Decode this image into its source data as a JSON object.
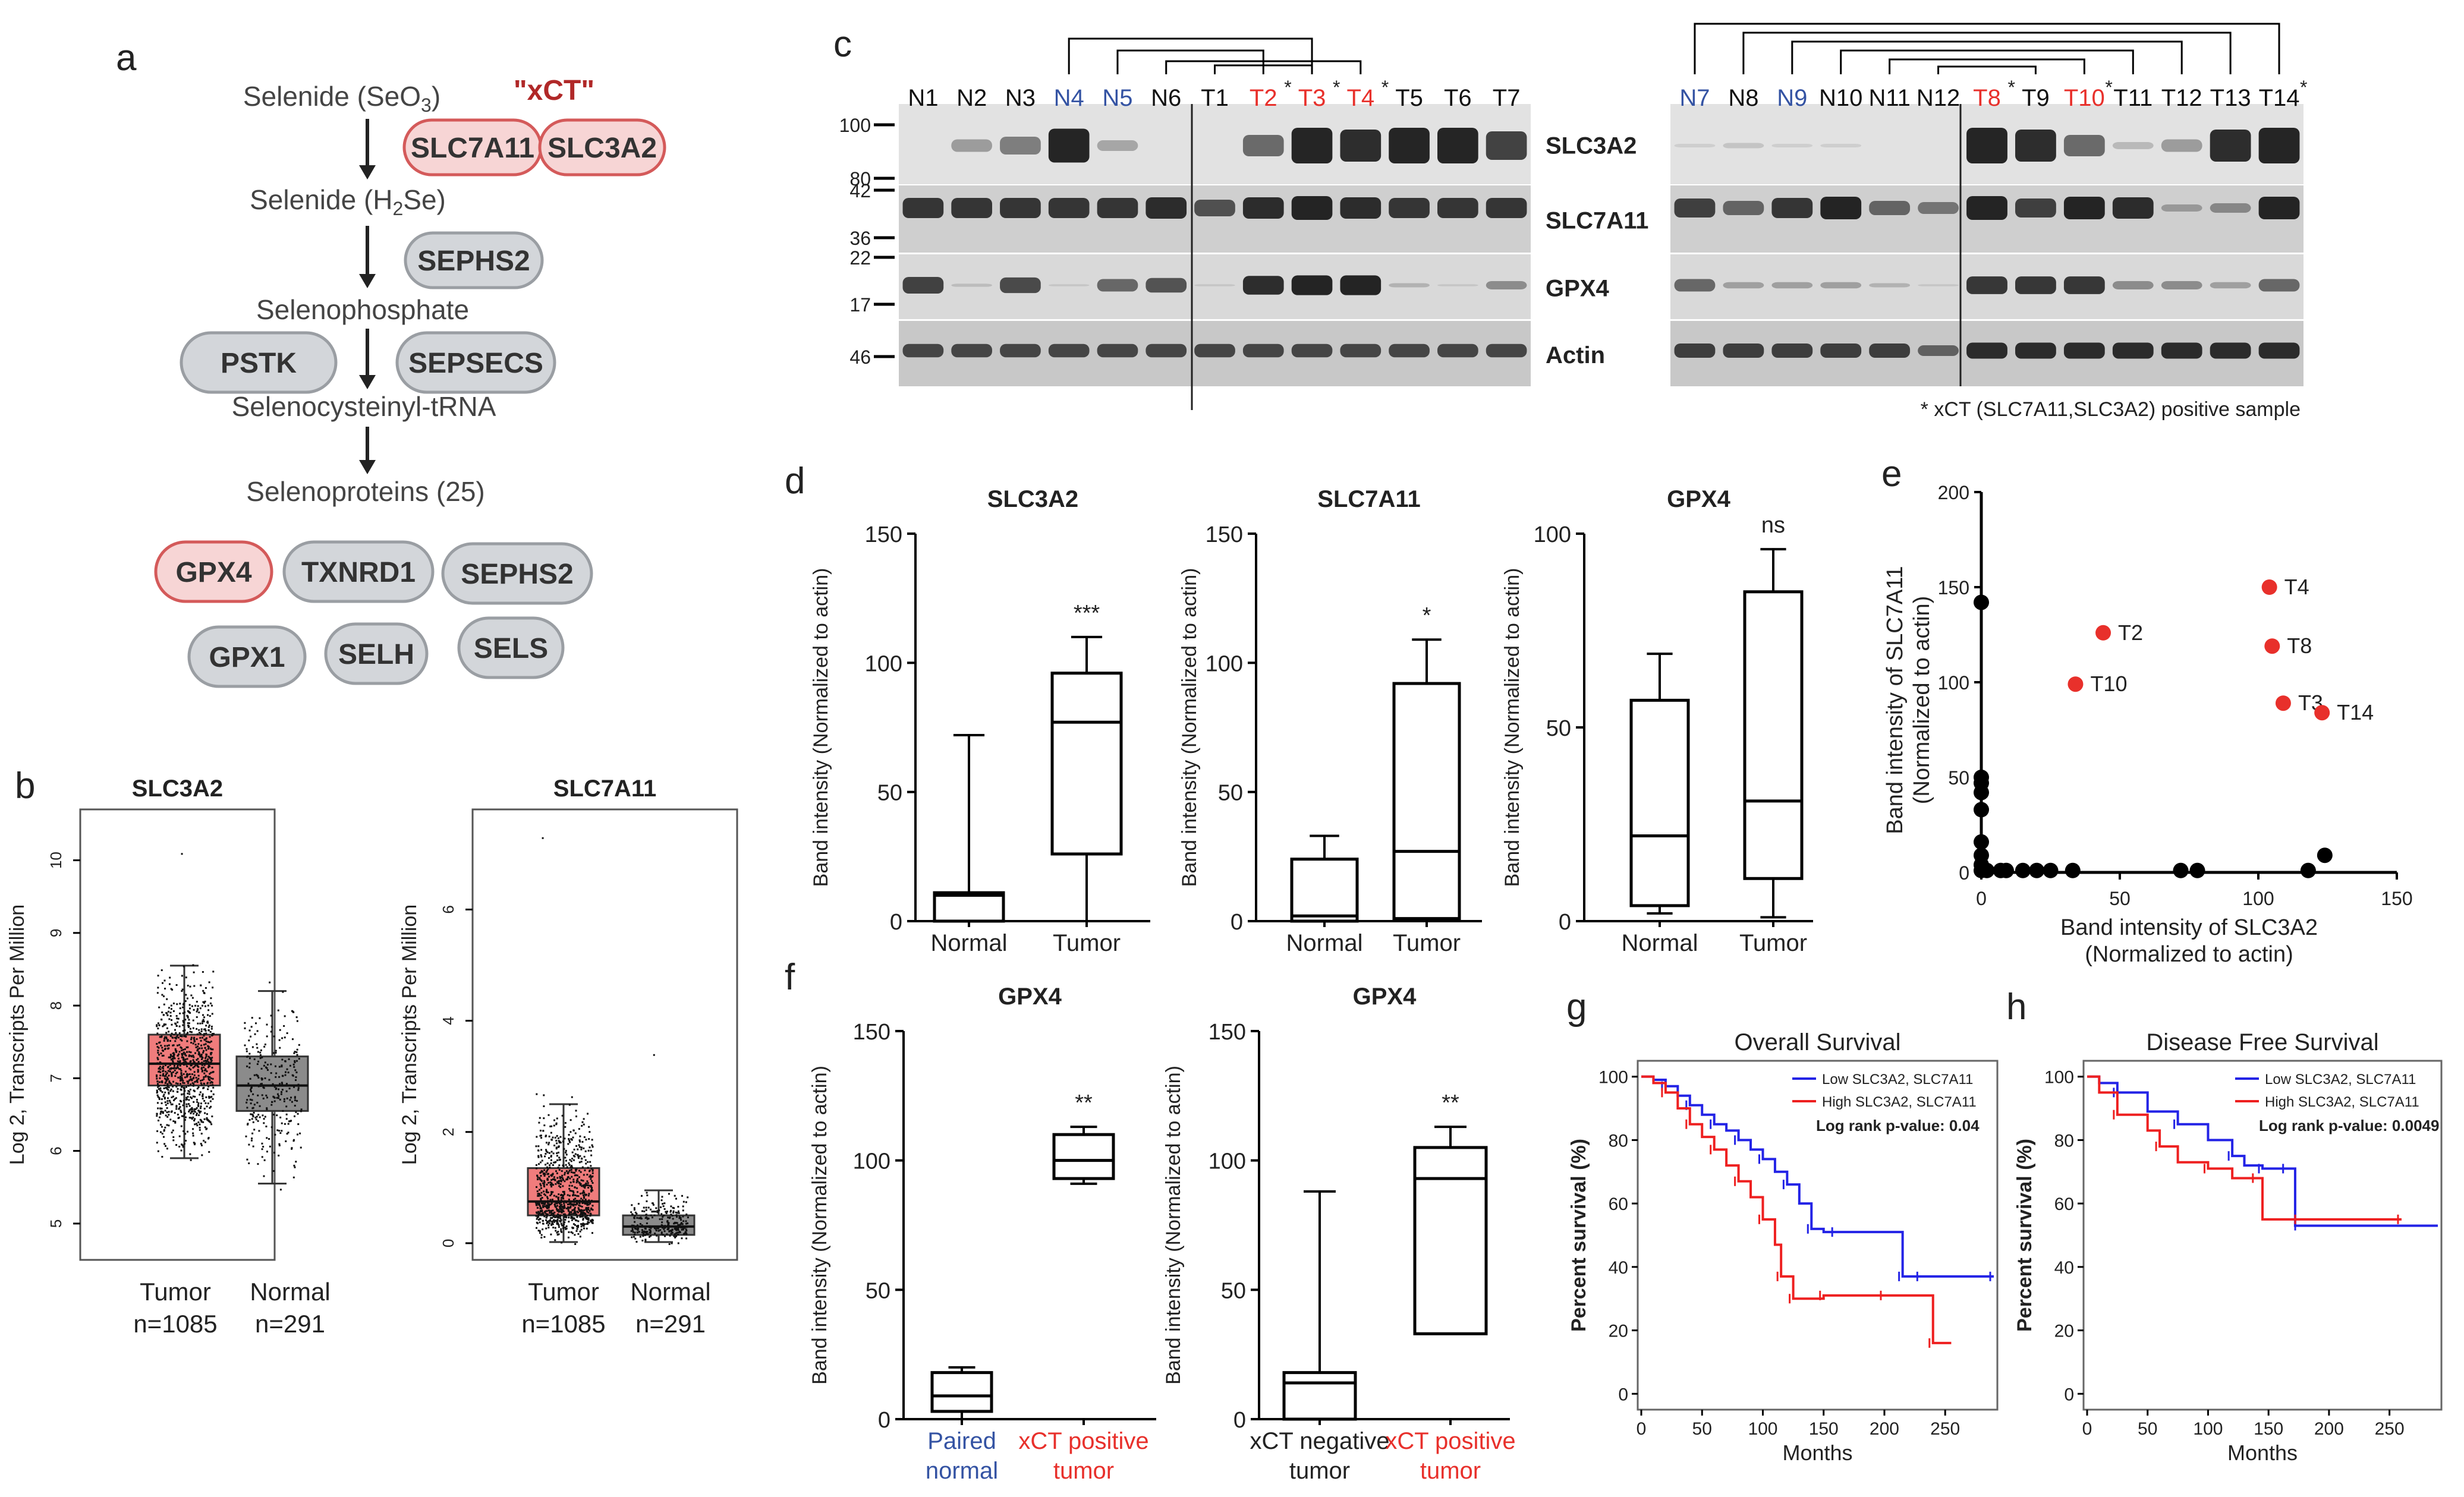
{
  "panel_labels": {
    "a": "a",
    "b": "b",
    "c": "c",
    "d": "d",
    "e": "e",
    "f": "f",
    "g": "g",
    "h": "h"
  },
  "colors": {
    "red": "#e8302b",
    "blue": "#3453a3",
    "pill_grey": "#d3d6da",
    "pill_red": "#f7d5d5",
    "tumor_box": "#f07c7c",
    "normal_box": "#8b8b8b",
    "km_blue": "#2323e6",
    "km_red": "#ee2020"
  },
  "pathway": {
    "steps": [
      {
        "pre": "Selenide (SeO",
        "sub": "3",
        "post": ")"
      },
      {
        "pre": "Selenide (H",
        "sub": "2",
        "post": "Se)"
      },
      {
        "pre": "Selenophosphate",
        "sub": "",
        "post": ""
      },
      {
        "pre": "Selenocysteinyl-tRNA",
        "sub": "",
        "post": ""
      },
      {
        "pre": "Selenoproteins (25)",
        "sub": "",
        "post": ""
      }
    ],
    "xct_label": "\"xCT\"",
    "enzymes": [
      "SLC7A11",
      "SLC3A2",
      "SEPHS2",
      "PSTK",
      "SEPSECS"
    ],
    "selenoproteins": [
      "GPX4",
      "TXNRD1",
      "SEPHS2",
      "GPX1",
      "SELH",
      "SELS"
    ]
  },
  "chart_data": [
    {
      "panel": "b-left",
      "type": "box",
      "title": "SLC3A2",
      "ylabel": "Log 2, Transcripts Per Million",
      "ylim": [
        4.5,
        10.7
      ],
      "yticks": [
        5,
        6,
        7,
        8,
        9,
        10
      ],
      "groups": [
        {
          "name": "Tumor",
          "n": "n=1085",
          "q1": 6.9,
          "median": 7.2,
          "q3": 7.6,
          "whisker_low": 5.9,
          "whisker_high": 8.55,
          "max": 10.1,
          "min": 5.5
        },
        {
          "name": "Normal",
          "n": "n=291",
          "q1": 6.55,
          "median": 6.9,
          "q3": 7.3,
          "whisker_low": 5.55,
          "whisker_high": 8.2,
          "max": 8.2,
          "min": 4.6
        }
      ]
    },
    {
      "panel": "b-right",
      "type": "box",
      "title": "SLC7A11",
      "ylabel": "Log 2, Transcripts Per Million",
      "ylim": [
        -0.3,
        7.8
      ],
      "yticks": [
        0,
        2,
        4,
        6
      ],
      "groups": [
        {
          "name": "Tumor",
          "n": "n=1085",
          "q1": 0.5,
          "median": 0.75,
          "q3": 1.35,
          "whisker_low": 0.02,
          "whisker_high": 2.5,
          "max": 7.3,
          "min": 0
        },
        {
          "name": "Normal",
          "n": "n=291",
          "q1": 0.15,
          "median": 0.3,
          "q3": 0.5,
          "whisker_low": 0.02,
          "whisker_high": 0.95,
          "max": 3.4,
          "min": 0
        }
      ]
    },
    {
      "panel": "d1",
      "type": "box",
      "title": "SLC3A2",
      "ylabel": "Band intensity (Normalized to actin)",
      "ylim": [
        0,
        150
      ],
      "yticks": [
        0,
        50,
        100,
        150
      ],
      "significance": "***",
      "groups": [
        {
          "name": "Normal",
          "min": 0,
          "q1": 0,
          "median": 10,
          "q3": 11,
          "max": 72
        },
        {
          "name": "Tumor",
          "min": 0,
          "q1": 26,
          "median": 77,
          "q3": 96,
          "max": 110
        }
      ]
    },
    {
      "panel": "d2",
      "type": "box",
      "title": "SLC7A11",
      "ylabel": "Band intensity (Normalized to actin)",
      "ylim": [
        0,
        150
      ],
      "yticks": [
        0,
        50,
        100,
        150
      ],
      "significance": "*",
      "groups": [
        {
          "name": "Normal",
          "min": 0,
          "q1": 0,
          "median": 2,
          "q3": 24,
          "max": 33
        },
        {
          "name": "Tumor",
          "min": 0,
          "q1": 1,
          "median": 27,
          "q3": 92,
          "max": 109
        }
      ]
    },
    {
      "panel": "d3",
      "type": "box",
      "title": "GPX4",
      "ylabel": "Band intensity (Normalized to actin)",
      "ylim": [
        0,
        100
      ],
      "yticks": [
        0,
        50,
        100
      ],
      "significance": "ns",
      "groups": [
        {
          "name": "Normal",
          "min": 2,
          "q1": 4,
          "median": 22,
          "q3": 57,
          "max": 69
        },
        {
          "name": "Tumor",
          "min": 1,
          "q1": 11,
          "median": 31,
          "q3": 85,
          "max": 96
        }
      ]
    },
    {
      "panel": "e",
      "type": "scatter",
      "xlabel": "Band intensity of SLC3A2",
      "xlabel2": "(Normalized to actin)",
      "ylabel": "Band intensity of SLC7A11",
      "ylabel2": "(Normalized to actin)",
      "xlim": [
        0,
        150
      ],
      "ylim": [
        0,
        200
      ],
      "xticks": [
        0,
        50,
        100,
        150
      ],
      "yticks": [
        0,
        50,
        100,
        150,
        200
      ],
      "points_black": [
        [
          0,
          142
        ],
        [
          0,
          50
        ],
        [
          0,
          47
        ],
        [
          0,
          42
        ],
        [
          0,
          33
        ],
        [
          0,
          16
        ],
        [
          0,
          9
        ],
        [
          0,
          4
        ],
        [
          0,
          1
        ],
        [
          2,
          1
        ],
        [
          7,
          1
        ],
        [
          9,
          1
        ],
        [
          15,
          1
        ],
        [
          20,
          1
        ],
        [
          25,
          1
        ],
        [
          33,
          1
        ],
        [
          72,
          1
        ],
        [
          78,
          1
        ],
        [
          118,
          1
        ],
        [
          124,
          9
        ]
      ],
      "points_red": [
        {
          "label": "T2",
          "x": 44,
          "y": 126
        },
        {
          "label": "T10",
          "x": 34,
          "y": 99
        },
        {
          "label": "T4",
          "x": 104,
          "y": 150
        },
        {
          "label": "T8",
          "x": 105,
          "y": 119
        },
        {
          "label": "T3",
          "x": 109,
          "y": 89
        },
        {
          "label": "T14",
          "x": 123,
          "y": 84
        }
      ]
    },
    {
      "panel": "f1",
      "type": "box",
      "title": "GPX4",
      "ylabel": "Band intensity (Normalized to actin)",
      "ylim": [
        0,
        150
      ],
      "yticks": [
        0,
        50,
        100,
        150
      ],
      "significance": "**",
      "groups": [
        {
          "name": "Paired normal",
          "line1": "Paired",
          "line2": "normal",
          "min": 0,
          "q1": 3,
          "median": 9,
          "q3": 18,
          "max": 20
        },
        {
          "name": "xCT positive tumor",
          "line1": "xCT positive",
          "line2": "tumor",
          "min": 91,
          "q1": 93,
          "median": 100,
          "q3": 110,
          "max": 113
        }
      ]
    },
    {
      "panel": "f2",
      "type": "box",
      "title": "GPX4",
      "ylabel": "Band intensity (Normalized to actin)",
      "ylim": [
        0,
        150
      ],
      "yticks": [
        0,
        50,
        100,
        150
      ],
      "significance": "**",
      "groups": [
        {
          "name": "xCT negative tumor",
          "line1": "xCT negative",
          "line2": "tumor",
          "min": 0,
          "q1": 0,
          "median": 14,
          "q3": 18,
          "max": 88
        },
        {
          "name": "xCT positive tumor",
          "line1": "xCT positive",
          "line2": "tumor",
          "min": 33,
          "q1": 33,
          "median": 93,
          "q3": 105,
          "max": 113
        }
      ]
    },
    {
      "panel": "g",
      "type": "line",
      "title": "Overall Survival",
      "xlabel": "Months",
      "ylabel": "Percent survival (%)",
      "xlim": [
        0,
        290
      ],
      "ylim": [
        -5,
        105
      ],
      "xticks": [
        0,
        50,
        100,
        150,
        200,
        250
      ],
      "yticks": [
        0,
        20,
        40,
        60,
        80,
        100
      ],
      "legend": [
        "Low SLC3A2, SLC7A11",
        "High SLC3A2, SLC7A11",
        "Log rank p-value: 0.04"
      ],
      "series": [
        {
          "name": "Low SLC3A2, SLC7A11",
          "x": [
            0,
            10,
            20,
            30,
            40,
            50,
            60,
            70,
            80,
            90,
            100,
            110,
            120,
            130,
            140,
            150,
            160,
            200,
            215,
            220,
            230,
            260,
            290
          ],
          "y": [
            100,
            99,
            97,
            94,
            91,
            88,
            85,
            83,
            80,
            77,
            74,
            70,
            66,
            60,
            52,
            51,
            51,
            51,
            37,
            37,
            37,
            37,
            37
          ]
        },
        {
          "name": "High SLC3A2, SLC7A11",
          "x": [
            0,
            10,
            20,
            30,
            40,
            50,
            60,
            70,
            80,
            90,
            100,
            110,
            115,
            120,
            125,
            140,
            150,
            170,
            200,
            235,
            240,
            255
          ],
          "y": [
            100,
            98,
            95,
            90,
            85,
            81,
            77,
            72,
            67,
            62,
            55,
            47,
            37,
            37,
            30,
            30,
            31,
            31,
            31,
            31,
            16,
            16
          ]
        }
      ]
    },
    {
      "panel": "h",
      "type": "line",
      "title": "Disease Free Survival",
      "xlabel": "Months",
      "ylabel": "Percent survival (%)",
      "xlim": [
        0,
        290
      ],
      "ylim": [
        -5,
        105
      ],
      "xticks": [
        0,
        50,
        100,
        150,
        200,
        250
      ],
      "yticks": [
        0,
        20,
        40,
        60,
        80,
        100
      ],
      "legend": [
        "Low SLC3A2, SLC7A11",
        "High SLC3A2, SLC7A11",
        "Log rank p-value: 0.0049"
      ],
      "series": [
        {
          "name": "Low SLC3A2, SLC7A11",
          "x": [
            0,
            10,
            25,
            50,
            75,
            100,
            120,
            130,
            145,
            150,
            165,
            172,
            175,
            290
          ],
          "y": [
            100,
            98,
            95,
            89,
            85,
            80,
            75,
            72,
            71,
            71,
            71,
            53,
            53,
            53
          ]
        },
        {
          "name": "High SLC3A2, SLC7A11",
          "x": [
            0,
            10,
            25,
            50,
            60,
            75,
            100,
            120,
            140,
            145,
            175,
            215,
            260
          ],
          "y": [
            100,
            95,
            88,
            83,
            78,
            73,
            71,
            68,
            68,
            55,
            55,
            55,
            55
          ]
        }
      ]
    }
  ],
  "blots": {
    "left_lanes": [
      "N1",
      "N2",
      "N3",
      "N4",
      "N5",
      "N6",
      "T1",
      "T2",
      "T3",
      "T4",
      "T5",
      "T6",
      "T7"
    ],
    "left_colors": [
      "k",
      "k",
      "k",
      "b",
      "b",
      "k",
      "k",
      "r",
      "r",
      "r",
      "k",
      "k",
      "k"
    ],
    "left_stars": [
      false,
      false,
      false,
      false,
      false,
      false,
      false,
      true,
      true,
      true,
      false,
      false,
      false
    ],
    "right_lanes": [
      "N7",
      "N8",
      "N9",
      "N10",
      "N11",
      "N12",
      "T8",
      "T9",
      "T10",
      "T11",
      "T12",
      "T13",
      "T14"
    ],
    "right_colors": [
      "b",
      "k",
      "b",
      "k",
      "k",
      "k",
      "r",
      "k",
      "r",
      "k",
      "k",
      "k",
      "k"
    ],
    "right_stars": [
      false,
      false,
      false,
      false,
      false,
      false,
      true,
      false,
      true,
      false,
      false,
      false,
      true
    ],
    "rows": [
      "SLC3A2",
      "SLC7A11",
      "GPX4",
      "Actin"
    ],
    "mw_markers": [
      "100",
      "80",
      "42",
      "36",
      "22",
      "17",
      "46"
    ],
    "star": "*",
    "footnote": "* xCT (SLC7A11,SLC3A2) positive sample"
  }
}
